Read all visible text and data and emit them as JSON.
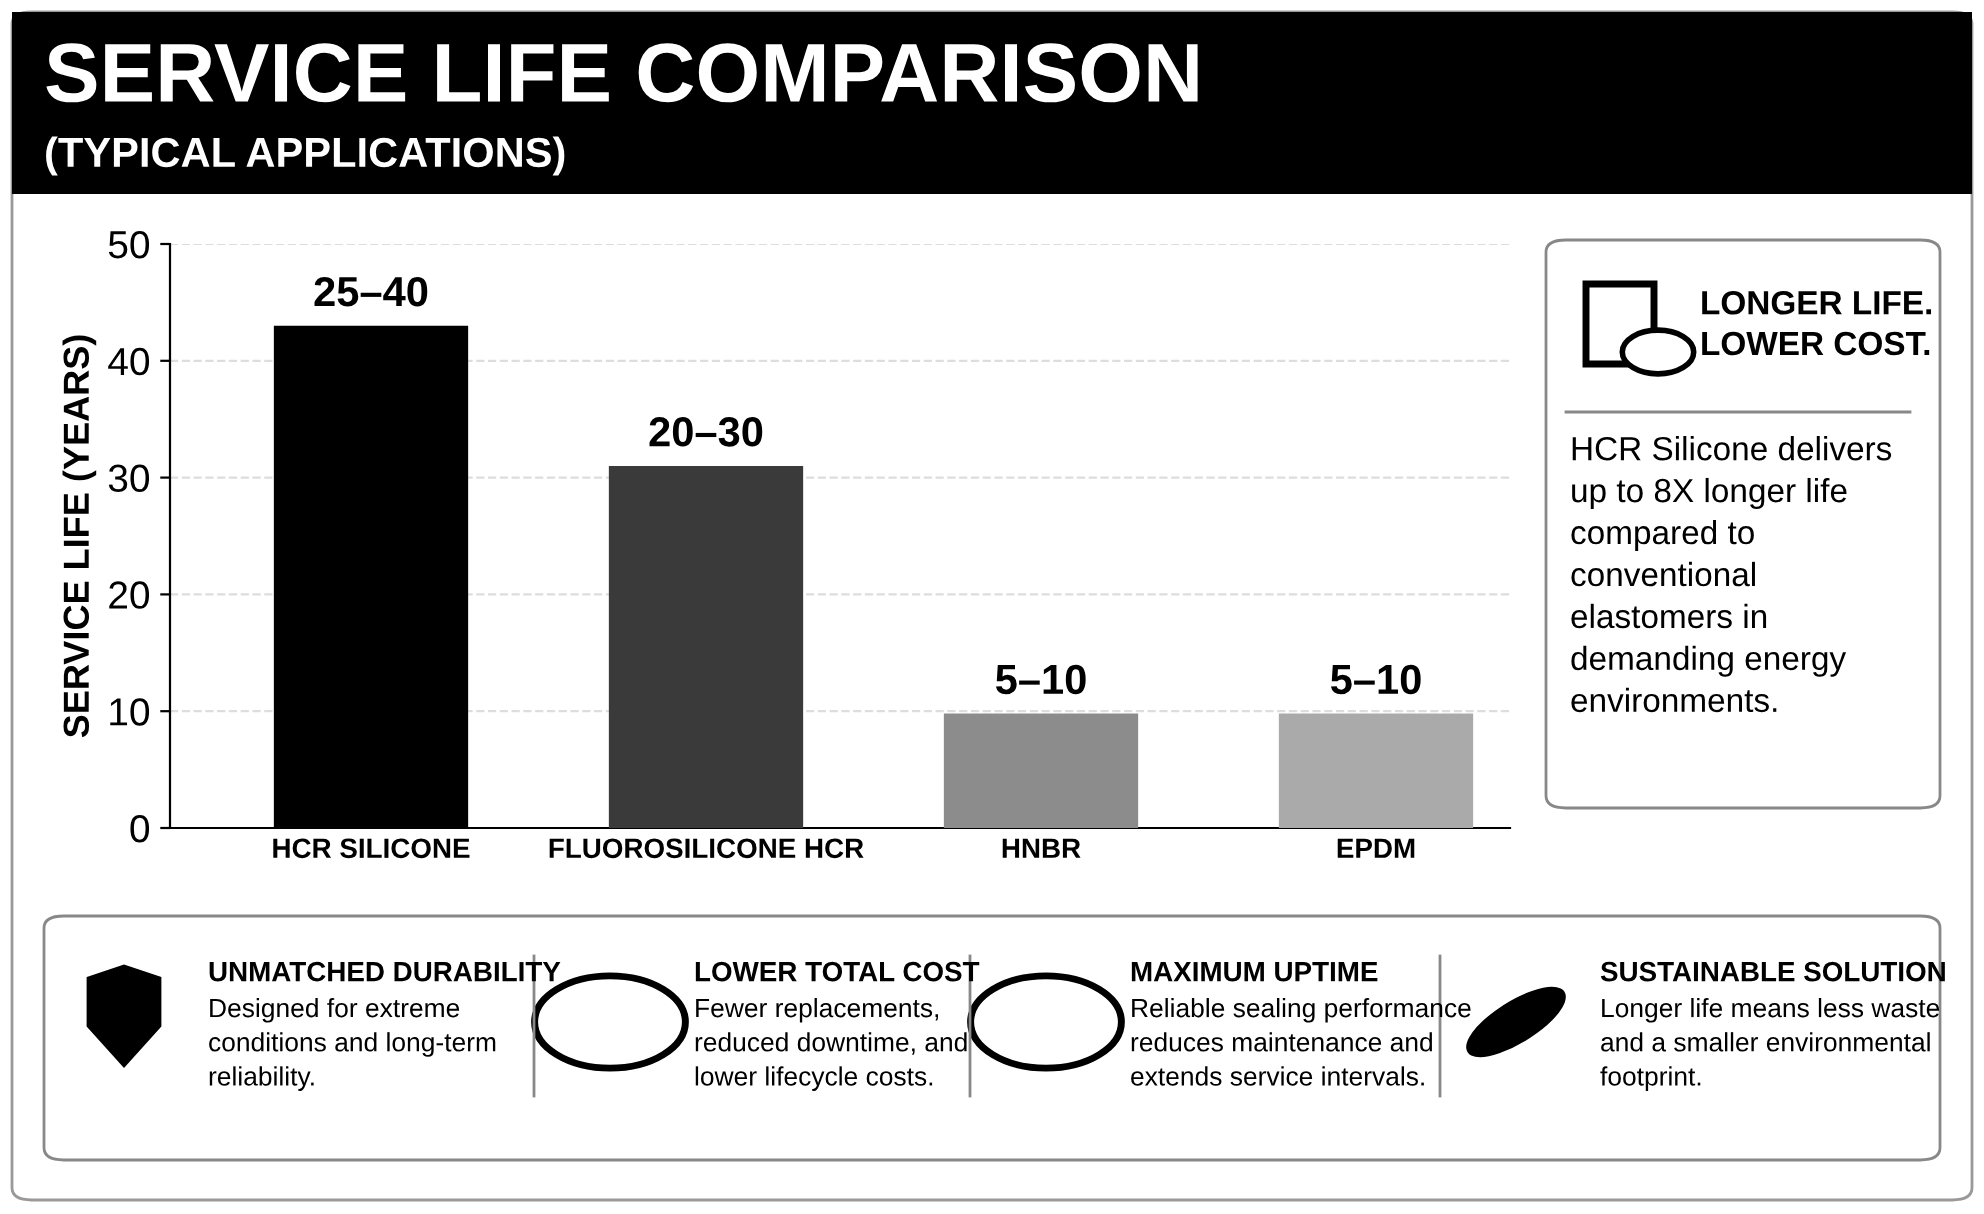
{
  "chart_data": {
    "type": "bar",
    "title": "SERVICE LIFE COMPARISON",
    "subtitle": "(TYPICAL APPLICATIONS)",
    "ylabel": "SERVICE LIFE (YEARS)",
    "categories": [
      "HCR SILICONE",
      "FLUOROSILICONE HCR",
      "HNBR",
      "EPDM"
    ],
    "values": [
      43,
      31,
      9.8,
      9.8
    ],
    "colors": [
      "#000000",
      "#3a3a3a",
      "#8c8c8c",
      "#aaaaaa"
    ],
    "value_labels": [
      "25–40",
      "20–30",
      "5–10",
      "5–10"
    ],
    "ylim": [
      0,
      50
    ],
    "yticks": [
      0,
      10,
      20,
      30,
      40,
      50
    ],
    "grid": "y",
    "annotations": [
      "LONGER LIFE.\nLOWER COST.",
      "HCR Silicone delivers\nup to 8X longer life\ncompared to\nconventional\nelastomers in\ndemanding energy\nenvironments.",
      "UNMATCHED DURABILITY",
      "Designed for extreme\nconditions and long-term\nreliability.",
      "LOWER TOTAL COST",
      "Fewer replacements,\nreduced downtime, and\nlower lifecycle costs.",
      "MAXIMUM UPTIME",
      "Reliable sealing performance\nreduces maintenance and\nextends service intervals.",
      "SUSTAINABLE SOLUTION",
      "Longer life means less waste\nand a smaller environmental\nfootprint."
    ]
  }
}
